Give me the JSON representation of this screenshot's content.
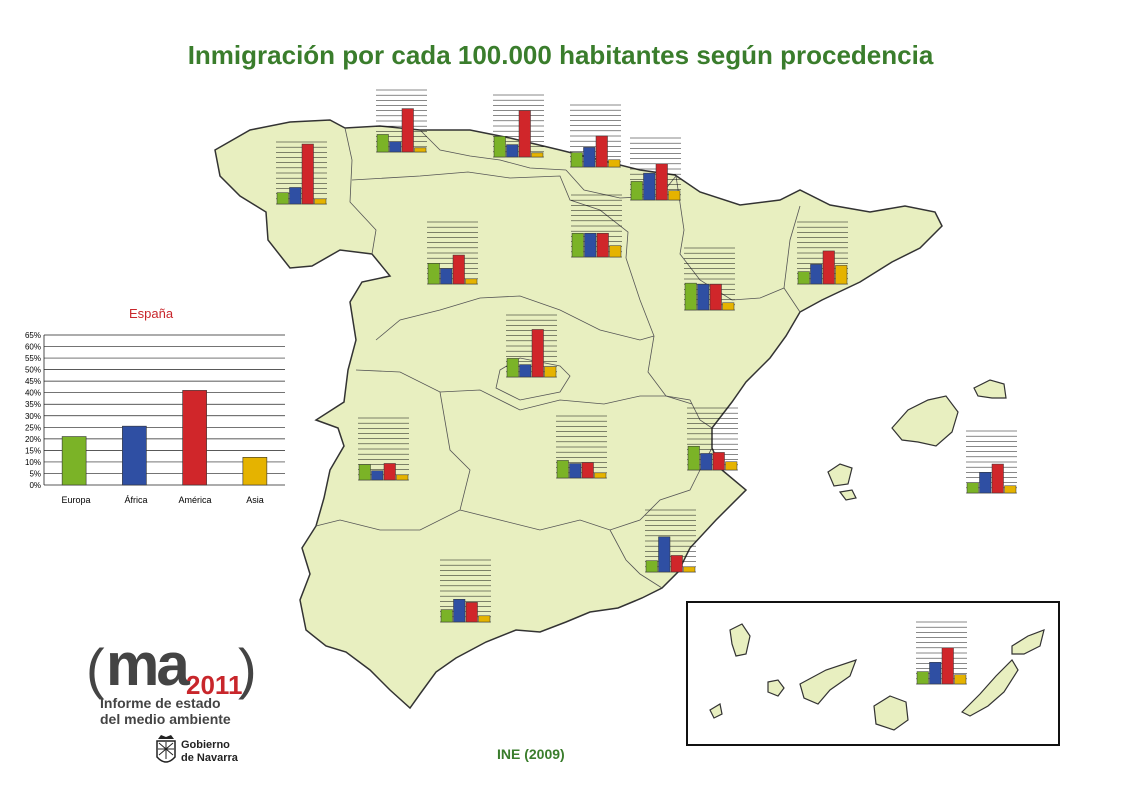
{
  "title": "Inmigración por cada 100.000 habitantes según procedencia",
  "source": "INE (2009)",
  "logo": {
    "word": "ma",
    "year": "2011",
    "line1": "Informe de estado",
    "line2": "del medio ambiente"
  },
  "government": {
    "line1": "Gobierno",
    "line2": "de Navarra"
  },
  "colors": {
    "Europa": "#7bb327",
    "África": "#2f4fa3",
    "América": "#d0262a",
    "Asia": "#e5b300",
    "map_fill": "#e8efc0",
    "title": "#3a7d2c"
  },
  "chart_data": {
    "type": "bar",
    "title": "España",
    "categories": [
      "Europa",
      "África",
      "América",
      "Asia"
    ],
    "values": [
      21,
      25.5,
      41,
      12
    ],
    "ylim": [
      0,
      65
    ],
    "ytick_labels": [
      "0%",
      "5%",
      "10%",
      "15%",
      "20%",
      "25%",
      "30%",
      "35%",
      "40%",
      "45%",
      "50%",
      "55%",
      "60%",
      "65%"
    ],
    "grid": true,
    "regional_charts": [
      {
        "values": [
          11,
          16,
          58,
          5
        ]
      },
      {
        "values": [
          17,
          10,
          42,
          4
        ]
      },
      {
        "values": [
          20,
          12,
          45,
          4
        ]
      },
      {
        "values": [
          14,
          19,
          30,
          7
        ]
      },
      {
        "values": [
          18,
          26,
          35,
          9
        ]
      },
      {
        "values": [
          23,
          23,
          23,
          11
        ]
      },
      {
        "values": [
          20,
          15,
          28,
          5
        ]
      },
      {
        "values": [
          26,
          25,
          25,
          7
        ]
      },
      {
        "values": [
          12,
          19,
          32,
          18
        ]
      },
      {
        "values": [
          18,
          12,
          46,
          10
        ]
      },
      {
        "values": [
          15,
          9,
          16,
          5
        ]
      },
      {
        "values": [
          17,
          14,
          15,
          5
        ]
      },
      {
        "values": [
          23,
          16,
          17,
          8
        ]
      },
      {
        "values": [
          10,
          20,
          28,
          7
        ]
      },
      {
        "values": [
          11,
          34,
          16,
          5
        ]
      },
      {
        "values": [
          12,
          22,
          19,
          6
        ]
      },
      {
        "values": [
          12,
          21,
          35,
          9
        ]
      }
    ]
  }
}
